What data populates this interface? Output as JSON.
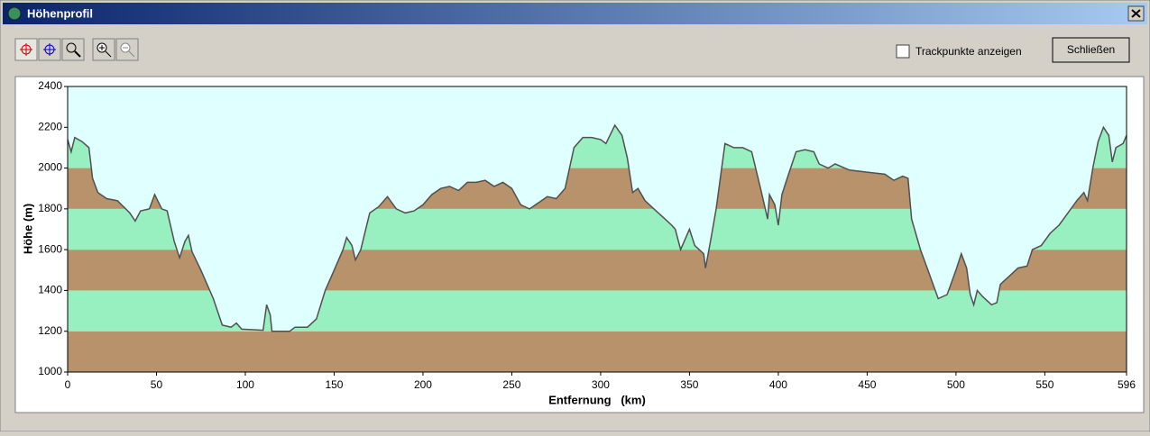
{
  "window": {
    "title": "Höhenprofil"
  },
  "toolbar": {
    "checkbox_label": "Trackpunkte anzeigen",
    "button_label": "Schließen"
  },
  "chart_data": {
    "type": "area",
    "x_label": "Entfernung   (km)",
    "y_label": "Höhe (m)",
    "xlim": [
      0,
      596
    ],
    "ylim": [
      1000,
      2400
    ],
    "xticks": [
      0,
      50,
      100,
      150,
      200,
      250,
      300,
      350,
      400,
      450,
      500,
      550,
      596
    ],
    "yticks": [
      1000,
      1200,
      1400,
      1600,
      1800,
      2000,
      2200,
      2400
    ],
    "band_colors": [
      "#b8926a",
      "#98f0c0"
    ],
    "sky_color": "#e0ffff",
    "color": "#505050",
    "x": [
      0,
      2,
      4,
      8,
      12,
      14,
      17,
      22,
      28,
      35,
      38,
      41,
      46,
      49,
      53,
      56,
      60,
      63,
      66,
      68,
      70,
      75,
      82,
      87,
      92,
      95,
      98,
      110,
      112,
      114,
      115,
      125,
      128,
      135,
      140,
      145,
      150,
      155,
      157,
      160,
      162,
      165,
      170,
      175,
      180,
      185,
      190,
      195,
      200,
      205,
      210,
      215,
      220,
      225,
      230,
      235,
      240,
      245,
      250,
      255,
      260,
      265,
      270,
      275,
      280,
      285,
      290,
      295,
      300,
      303,
      308,
      312,
      315,
      318,
      321,
      325,
      330,
      335,
      340,
      342,
      345,
      350,
      353,
      358,
      359,
      362,
      365,
      370,
      375,
      380,
      385,
      390,
      394,
      395,
      398,
      400,
      402,
      405,
      410,
      415,
      420,
      423,
      428,
      432,
      440,
      450,
      460,
      465,
      470,
      473,
      475,
      480,
      485,
      490,
      495,
      500,
      503,
      506,
      508,
      510,
      512,
      515,
      520,
      523,
      525,
      530,
      535,
      540,
      543,
      548,
      553,
      558,
      563,
      568,
      572,
      574,
      577,
      580,
      583,
      586,
      588,
      590,
      594,
      596
    ],
    "values": [
      2140,
      2080,
      2150,
      2130,
      2100,
      1950,
      1880,
      1850,
      1840,
      1780,
      1740,
      1790,
      1800,
      1870,
      1800,
      1790,
      1640,
      1560,
      1640,
      1670,
      1590,
      1500,
      1360,
      1230,
      1220,
      1240,
      1210,
      1205,
      1330,
      1280,
      1200,
      1200,
      1220,
      1220,
      1260,
      1400,
      1500,
      1600,
      1660,
      1620,
      1550,
      1600,
      1780,
      1810,
      1860,
      1800,
      1780,
      1790,
      1820,
      1870,
      1900,
      1910,
      1890,
      1930,
      1930,
      1940,
      1910,
      1930,
      1900,
      1820,
      1800,
      1830,
      1860,
      1850,
      1900,
      2100,
      2150,
      2150,
      2140,
      2120,
      2210,
      2160,
      2050,
      1880,
      1900,
      1840,
      1800,
      1760,
      1720,
      1700,
      1600,
      1700,
      1620,
      1580,
      1510,
      1650,
      1800,
      2120,
      2100,
      2100,
      2080,
      1900,
      1750,
      1870,
      1820,
      1720,
      1870,
      1950,
      2080,
      2090,
      2080,
      2020,
      2000,
      2020,
      1990,
      1980,
      1970,
      1940,
      1960,
      1950,
      1750,
      1600,
      1480,
      1360,
      1380,
      1500,
      1580,
      1510,
      1380,
      1330,
      1400,
      1370,
      1330,
      1340,
      1430,
      1470,
      1510,
      1520,
      1600,
      1620,
      1680,
      1720,
      1780,
      1840,
      1880,
      1840,
      2000,
      2130,
      2200,
      2160,
      2030,
      2100,
      2120,
      2160
    ]
  }
}
